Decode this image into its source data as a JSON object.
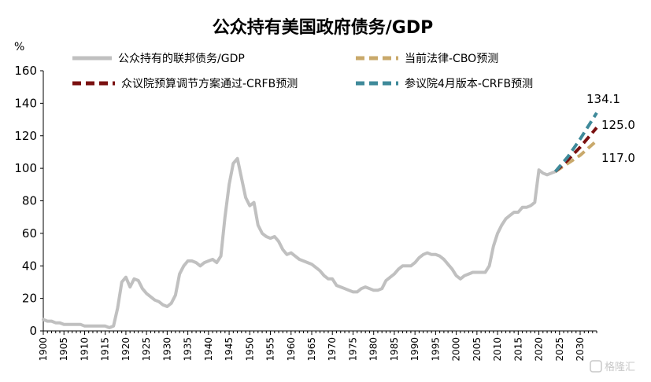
{
  "chart_data": {
    "type": "line",
    "title": "公众持有美国政府债务/GDP",
    "ylabel": "%",
    "xlabel": "",
    "xlim": [
      1900,
      2034
    ],
    "ylim": [
      0,
      160
    ],
    "yticks": [
      0,
      20,
      40,
      60,
      80,
      100,
      120,
      140,
      160
    ],
    "xticks": [
      1900,
      1905,
      1910,
      1915,
      1920,
      1925,
      1930,
      1935,
      1940,
      1945,
      1950,
      1955,
      1960,
      1965,
      1970,
      1975,
      1980,
      1985,
      1990,
      1995,
      2000,
      2005,
      2010,
      2015,
      2020,
      2025,
      2030
    ],
    "grid": false,
    "legend_position": "top",
    "series": [
      {
        "name": "公众持有的联邦债务/GDP",
        "color": "#c0c0c0",
        "style": "solid",
        "x": [
          1900,
          1901,
          1902,
          1903,
          1904,
          1905,
          1906,
          1907,
          1908,
          1909,
          1910,
          1911,
          1912,
          1913,
          1914,
          1915,
          1916,
          1917,
          1918,
          1919,
          1920,
          1921,
          1922,
          1923,
          1924,
          1925,
          1926,
          1927,
          1928,
          1929,
          1930,
          1931,
          1932,
          1933,
          1934,
          1935,
          1936,
          1937,
          1938,
          1939,
          1940,
          1941,
          1942,
          1943,
          1944,
          1945,
          1946,
          1947,
          1948,
          1949,
          1950,
          1951,
          1952,
          1953,
          1954,
          1955,
          1956,
          1957,
          1958,
          1959,
          1960,
          1961,
          1962,
          1963,
          1964,
          1965,
          1966,
          1967,
          1968,
          1969,
          1970,
          1971,
          1972,
          1973,
          1974,
          1975,
          1976,
          1977,
          1978,
          1979,
          1980,
          1981,
          1982,
          1983,
          1984,
          1985,
          1986,
          1987,
          1988,
          1989,
          1990,
          1991,
          1992,
          1993,
          1994,
          1995,
          1996,
          1997,
          1998,
          1999,
          2000,
          2001,
          2002,
          2003,
          2004,
          2005,
          2006,
          2007,
          2008,
          2009,
          2010,
          2011,
          2012,
          2013,
          2014,
          2015,
          2016,
          2017,
          2018,
          2019,
          2020,
          2021,
          2022,
          2023,
          2024
        ],
        "values": [
          7,
          6,
          6,
          5,
          5,
          4,
          4,
          4,
          4,
          4,
          3,
          3,
          3,
          3,
          3,
          3,
          2,
          3,
          14,
          30,
          33,
          27,
          32,
          31,
          26,
          23,
          21,
          19,
          18,
          16,
          15,
          17,
          22,
          35,
          40,
          43,
          43,
          42,
          40,
          42,
          43,
          44,
          42,
          46,
          70,
          90,
          103,
          106,
          94,
          82,
          77,
          79,
          65,
          60,
          58,
          57,
          58,
          55,
          50,
          47,
          48,
          46,
          44,
          43,
          42,
          41,
          39,
          37,
          34,
          32,
          32,
          28,
          27,
          26,
          25,
          24,
          24,
          26,
          27,
          26,
          25,
          25,
          26,
          31,
          33,
          35,
          38,
          40,
          40,
          40,
          42,
          45,
          47,
          48,
          47,
          47,
          46,
          44,
          41,
          38,
          34,
          32,
          34,
          35,
          36,
          36,
          36,
          36,
          40,
          52,
          60,
          65,
          69,
          71,
          73,
          73,
          76,
          76,
          77,
          79,
          99,
          97,
          96,
          97,
          98
        ]
      },
      {
        "name": "当前法律-CBO预测",
        "color": "#c9a96b",
        "style": "dashed",
        "x": [
          2024,
          2027,
          2030,
          2034
        ],
        "values": [
          98,
          103,
          108,
          117
        ],
        "end_label": "117.0"
      },
      {
        "name": "众议院预算调节方案通过-CRFB预测",
        "color": "#7a1010",
        "style": "dashed",
        "x": [
          2024,
          2027,
          2030,
          2034
        ],
        "values": [
          98,
          105,
          113,
          125
        ],
        "end_label": "125.0"
      },
      {
        "name": "参议院4月版本-CRFB预测",
        "color": "#3f8a9a",
        "style": "dashed",
        "x": [
          2024,
          2027,
          2030,
          2034
        ],
        "values": [
          98,
          107,
          118,
          134.1
        ],
        "end_label": "134.1"
      }
    ]
  },
  "watermark": "格隆汇"
}
